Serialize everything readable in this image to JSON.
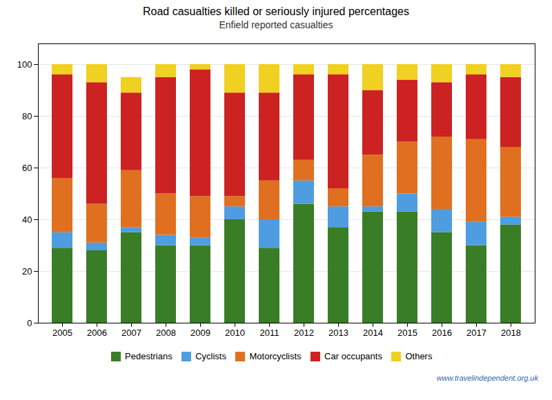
{
  "chart_data": {
    "type": "bar",
    "stacked": true,
    "title": "Road casualties killed or seriously injured percentages",
    "subtitle": "Enfield reported casualties",
    "categories": [
      "2005",
      "2006",
      "2007",
      "2008",
      "2009",
      "2010",
      "2011",
      "2012",
      "2013",
      "2014",
      "2015",
      "2016",
      "2017",
      "2018"
    ],
    "series": [
      {
        "name": "Pedestrians",
        "color": "#3a7d27",
        "values": [
          29,
          28,
          35,
          30,
          30,
          40,
          29,
          46,
          37,
          43,
          43,
          35,
          30,
          38
        ]
      },
      {
        "name": "Cyclists",
        "color": "#4d9de0",
        "values": [
          6,
          3,
          2,
          4,
          3,
          5,
          11,
          9,
          8,
          2,
          7,
          9,
          9,
          3
        ]
      },
      {
        "name": "Motorcyclists",
        "color": "#e07020",
        "values": [
          21,
          15,
          22,
          16,
          16,
          4,
          15,
          8,
          7,
          20,
          20,
          28,
          32,
          27
        ]
      },
      {
        "name": "Car occupants",
        "color": "#cc2222",
        "values": [
          40,
          47,
          30,
          45,
          49,
          40,
          34,
          33,
          44,
          25,
          24,
          21,
          25,
          27
        ]
      },
      {
        "name": "Others",
        "color": "#f0d020",
        "values": [
          4,
          7,
          6,
          5,
          2,
          11,
          11,
          4,
          4,
          10,
          6,
          7,
          4,
          5
        ]
      }
    ],
    "ylim": [
      0,
      108
    ],
    "yticks": [
      0,
      20,
      40,
      60,
      80,
      100
    ],
    "grid": true,
    "legend": "bottom",
    "annotations": [
      "www.travelindependent.org.uk"
    ]
  }
}
